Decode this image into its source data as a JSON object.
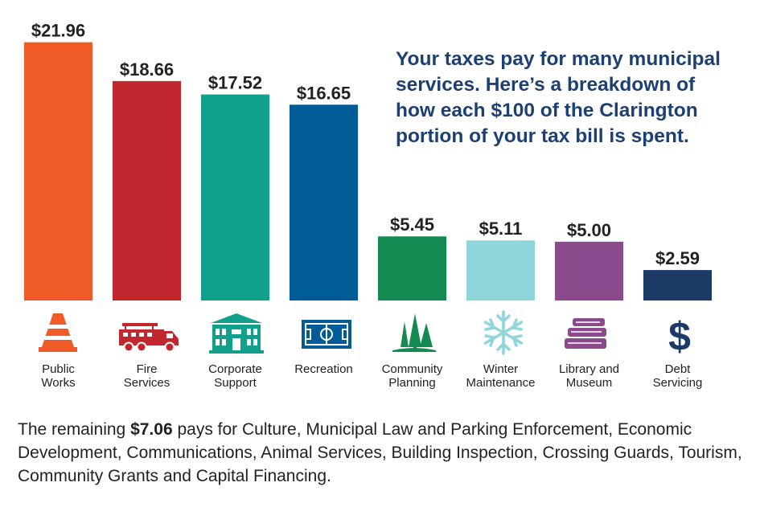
{
  "headline_lines": [
    "Your taxes pay for many municipal",
    "services. Here’s a breakdown of",
    "how each $100 of the Clarington",
    "portion of your tax bill is spent."
  ],
  "footer": {
    "prefix": "The remaining ",
    "amount": "$7.06",
    "rest": " pays for Culture, Municipal Law and Parking Enforcement, Economic Development, Communications, Animal Services, Building Inspection, Crossing Guards, Tourism, Community Grants and Capital Financing."
  },
  "chart_data": {
    "type": "bar",
    "unit_prefix": "$",
    "categories": [
      [
        "Public",
        "Works"
      ],
      [
        "Fire",
        "Services"
      ],
      [
        "Corporate",
        "Support"
      ],
      [
        "Recreation"
      ],
      [
        "Community",
        "Planning"
      ],
      [
        "Winter",
        "Maintenance"
      ],
      [
        "Library and",
        "Museum"
      ],
      [
        "Debt",
        "Servicing"
      ]
    ],
    "values": [
      21.96,
      18.66,
      17.52,
      16.65,
      5.45,
      5.11,
      5.0,
      2.59
    ],
    "value_labels": [
      "$21.96",
      "$18.66",
      "$17.52",
      "$16.65",
      "$5.45",
      "$5.11",
      "$5.00",
      "$2.59"
    ],
    "colors": [
      "#f15a29",
      "#c1272d",
      "#10a08c",
      "#005b96",
      "#138a4f",
      "#8ed6dc",
      "#8a4a8c",
      "#1b3a66"
    ],
    "icons": [
      "traffic-cone-icon",
      "fire-truck-icon",
      "building-icon",
      "sports-field-icon",
      "pine-trees-icon",
      "snowflake-icon",
      "books-icon",
      "dollar-sign-icon"
    ],
    "ylim": [
      0,
      22
    ]
  }
}
